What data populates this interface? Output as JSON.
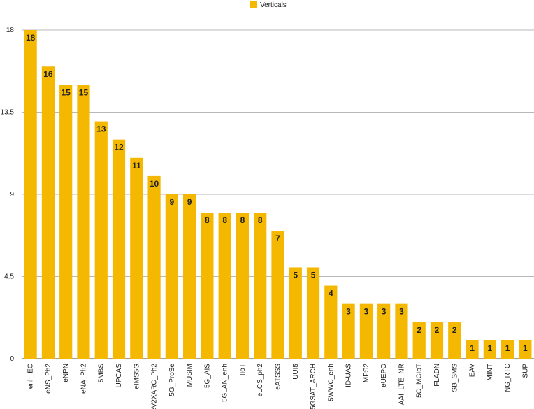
{
  "chart_data": {
    "type": "bar",
    "categories": [
      "enh_EC",
      "eNS_Ph2",
      "eNPN",
      "eNA_Ph2",
      "5MBS",
      "UPCAS",
      "eIMS5G",
      "eV2XARC_Ph2",
      "5G_ProSe",
      "MUSIM",
      "5G_AIS",
      "5GLAN_enh",
      "IIoT",
      "eLCS_ph2",
      "eATSSS",
      "UUI5",
      "5GSAT_ARCH",
      "5WWC_enh",
      "ID-UAS",
      "MPS2",
      "eUEPO",
      "AAI_LTE_NR",
      "5G_MCIoT",
      "FLADN",
      "SB_SMS",
      "EAV",
      "MINT",
      "NG_RTC",
      "SUP"
    ],
    "series": [
      {
        "name": "Verticals",
        "values": [
          18,
          16,
          15,
          15,
          13,
          12,
          11,
          10,
          9,
          9,
          8,
          8,
          8,
          8,
          7,
          5,
          5,
          4,
          3,
          3,
          3,
          3,
          2,
          2,
          2,
          1,
          1,
          1,
          1
        ]
      }
    ],
    "yticks": [
      "0",
      "4.5",
      "9",
      "13.5",
      "18"
    ],
    "ylim": [
      0,
      18
    ],
    "grid": true,
    "legend_position": "top-center",
    "colors": {
      "bar": "#F5B800",
      "grid": "#b8b8b8",
      "axis": "#444444"
    }
  }
}
